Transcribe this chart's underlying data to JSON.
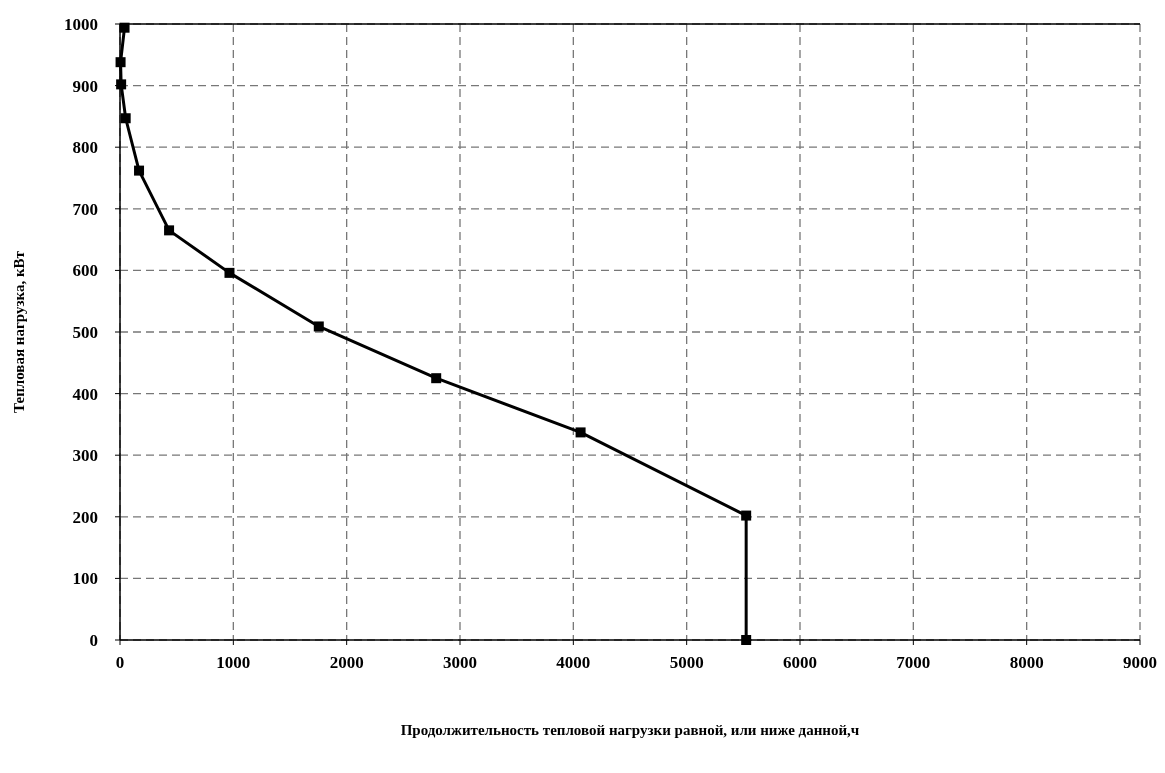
{
  "chart_data": {
    "type": "line",
    "xlabel": "Продолжительность тепловой нагрузки равной, или ниже данной,ч",
    "ylabel": "Тепловая нагрузка, кВт",
    "x": [
      40,
      5,
      10,
      50,
      168,
      433,
      966,
      1754,
      2790,
      4064,
      5525,
      5525
    ],
    "series": [
      {
        "color": "#000000",
        "values": [
          994,
          938,
          902,
          847,
          762,
          665,
          596,
          509,
          425,
          337,
          202,
          0
        ]
      }
    ],
    "xlim": [
      0,
      9000
    ],
    "xticks": [
      0,
      1000,
      2000,
      3000,
      4000,
      5000,
      6000,
      7000,
      8000,
      9000
    ],
    "ylim": [
      0,
      1000
    ],
    "yticks": [
      0,
      100,
      200,
      300,
      400,
      500,
      600,
      700,
      800,
      900,
      1000
    ],
    "grid": true,
    "marker": "square",
    "line_style": "solid"
  }
}
